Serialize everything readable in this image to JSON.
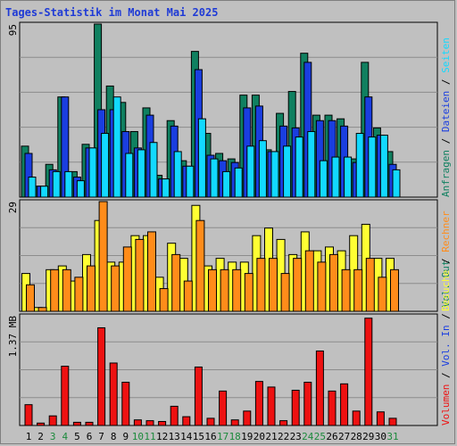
{
  "title": "Tages-Statistik im Monat Mai 2025",
  "colors": {
    "anfragen": "#108060",
    "dateien": "#1a3ee0",
    "seiten": "#12d9ff",
    "besuche": "#ffff33",
    "rechner": "#ff8c1a",
    "volumen": "#ee1111",
    "weekend_label": "#1c8a3c",
    "weekday_label": "#000000",
    "grid": "#8c8c8c"
  },
  "chart_data": [
    {
      "type": "bar",
      "panel": "top",
      "ymax_label": "95",
      "ylim": [
        0,
        95
      ],
      "legend": [
        "Anfragen",
        "Dateien",
        "Seiten"
      ],
      "legend_separator": "/",
      "categories": [
        "1",
        "2",
        "3",
        "4",
        "5",
        "6",
        "7",
        "8",
        "9",
        "10",
        "11",
        "12",
        "13",
        "14",
        "15",
        "16",
        "17",
        "18",
        "19",
        "20",
        "21",
        "22",
        "23",
        "24",
        "25",
        "26",
        "27",
        "28",
        "29",
        "30",
        "31"
      ],
      "weekend_days": [
        3,
        4,
        10,
        11,
        17,
        18,
        24,
        25,
        31
      ],
      "series": [
        {
          "name": "Anfragen",
          "values": [
            28,
            6,
            18,
            55,
            14,
            29,
            95,
            61,
            52,
            36,
            49,
            12,
            42,
            20,
            80,
            35,
            24,
            21,
            56,
            56,
            26,
            46,
            58,
            79,
            45,
            45,
            43,
            21,
            74,
            38,
            25
          ]
        },
        {
          "name": "Dateien",
          "values": [
            24,
            6,
            15,
            55,
            11,
            27,
            48,
            48,
            36,
            27,
            45,
            10,
            39,
            17,
            70,
            23,
            20,
            19,
            49,
            50,
            25,
            39,
            38,
            74,
            42,
            42,
            39,
            19,
            55,
            34,
            18
          ]
        },
        {
          "name": "Seiten",
          "values": [
            11,
            6,
            14,
            14,
            9,
            27,
            35,
            55,
            24,
            26,
            30,
            10,
            25,
            17,
            43,
            21,
            14,
            16,
            28,
            31,
            25,
            28,
            33,
            36,
            20,
            22,
            22,
            35,
            33,
            34,
            15
          ]
        }
      ]
    },
    {
      "type": "bar",
      "panel": "middle",
      "ymax_label": "29",
      "ylim": [
        0,
        29
      ],
      "legend": [
        "Besuche",
        "Rechner"
      ],
      "legend_separator": "/",
      "series": [
        {
          "name": "Besuche",
          "values": [
            10,
            1,
            11,
            12,
            8,
            15,
            24,
            13,
            13,
            20,
            20,
            9,
            18,
            14,
            28,
            12,
            14,
            13,
            13,
            20,
            22,
            19,
            15,
            21,
            16,
            17,
            16,
            20,
            23,
            14,
            14
          ]
        },
        {
          "name": "Rechner",
          "values": [
            7,
            1,
            11,
            11,
            9,
            12,
            29,
            12,
            17,
            19,
            21,
            6,
            15,
            8,
            24,
            11,
            11,
            11,
            10,
            14,
            14,
            10,
            14,
            16,
            13,
            15,
            11,
            11,
            14,
            9,
            11
          ]
        }
      ]
    },
    {
      "type": "bar",
      "panel": "bottom",
      "ymax_label": "1.37 MB",
      "ylim": [
        0,
        1.37
      ],
      "legend": [
        "Volumen",
        "Vol. In",
        "Vol. Out"
      ],
      "legend_separator": "/",
      "series": [
        {
          "name": "Volumen",
          "values": [
            0.26,
            0.03,
            0.12,
            0.74,
            0.04,
            0.04,
            1.22,
            0.78,
            0.54,
            0.07,
            0.06,
            0.05,
            0.24,
            0.11,
            0.73,
            0.09,
            0.43,
            0.07,
            0.18,
            0.55,
            0.48,
            0.06,
            0.44,
            0.54,
            0.93,
            0.43,
            0.52,
            0.18,
            1.34,
            0.17,
            0.09
          ]
        }
      ]
    }
  ]
}
